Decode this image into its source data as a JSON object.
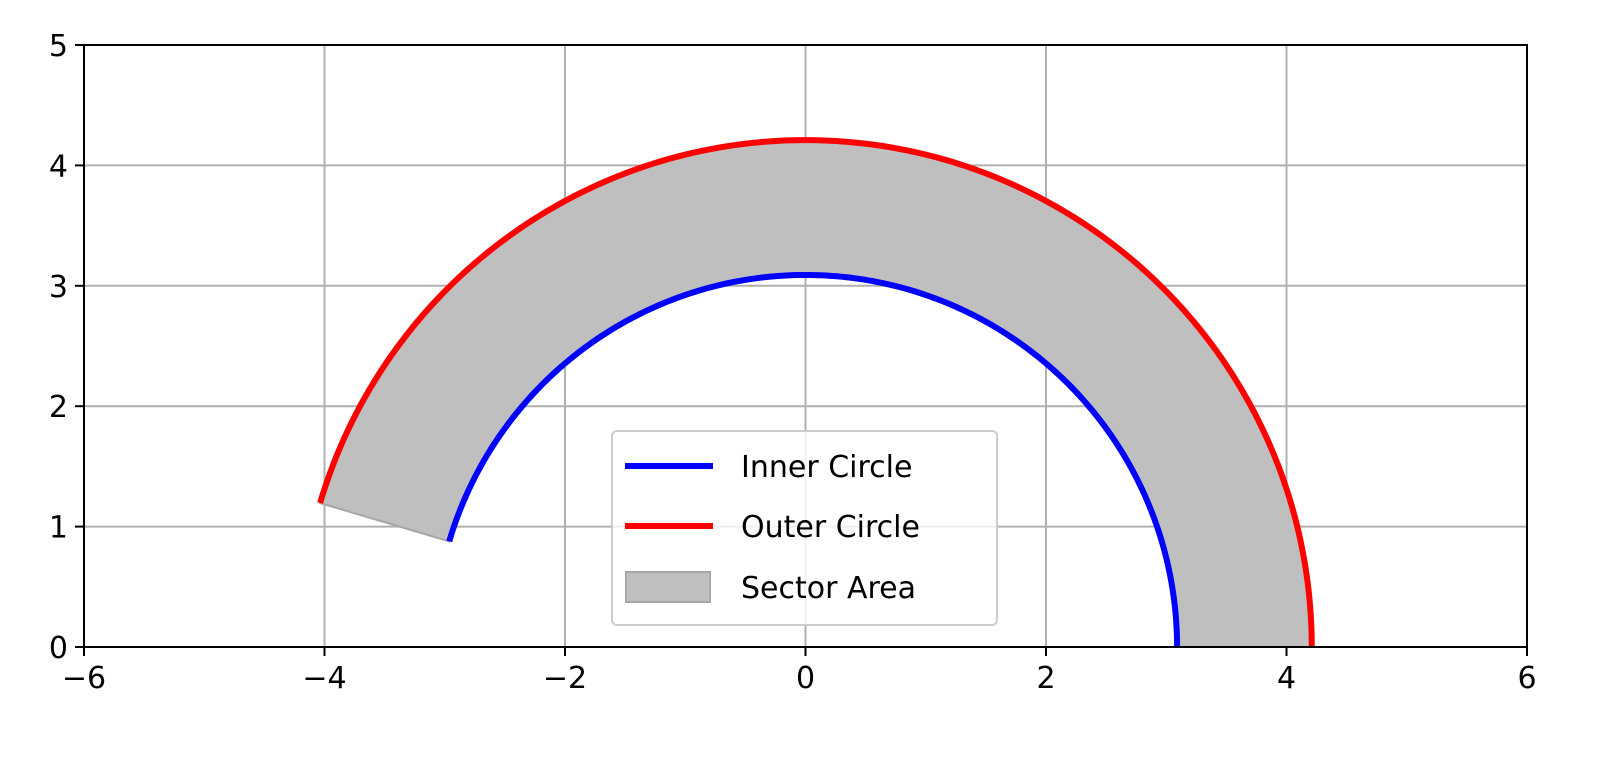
{
  "chart_data": {
    "type": "area",
    "title": "",
    "xlabel": "",
    "ylabel": "",
    "xlim": [
      -6,
      6
    ],
    "ylim": [
      0,
      5
    ],
    "xticks": [
      -6,
      -4,
      -2,
      0,
      2,
      4,
      6
    ],
    "xtick_labels": [
      "−6",
      "−4",
      "−2",
      "0",
      "2",
      "4",
      "6"
    ],
    "yticks": [
      0,
      1,
      2,
      3,
      4,
      5
    ],
    "ytick_labels": [
      "0",
      "1",
      "2",
      "3",
      "4",
      "5"
    ],
    "grid": true,
    "legend_position": "lower center",
    "aspect": "equal",
    "series": [
      {
        "name": "Inner Circle",
        "kind": "arc",
        "color": "#0000ff",
        "center": [
          0,
          0
        ],
        "radius": 3.09,
        "theta_start_deg": 0,
        "theta_end_deg": 163.5
      },
      {
        "name": "Outer Circle",
        "kind": "arc",
        "color": "#ff0000",
        "center": [
          0,
          0
        ],
        "radius": 4.21,
        "theta_start_deg": 0,
        "theta_end_deg": 163.5
      },
      {
        "name": "Sector Area",
        "kind": "annular-sector-fill",
        "color": "#bfbfbf",
        "edge_color": "#a6a6a6",
        "inner_radius": 3.09,
        "outer_radius": 4.21,
        "theta_start_deg": 0,
        "theta_end_deg": 163.5
      }
    ]
  }
}
